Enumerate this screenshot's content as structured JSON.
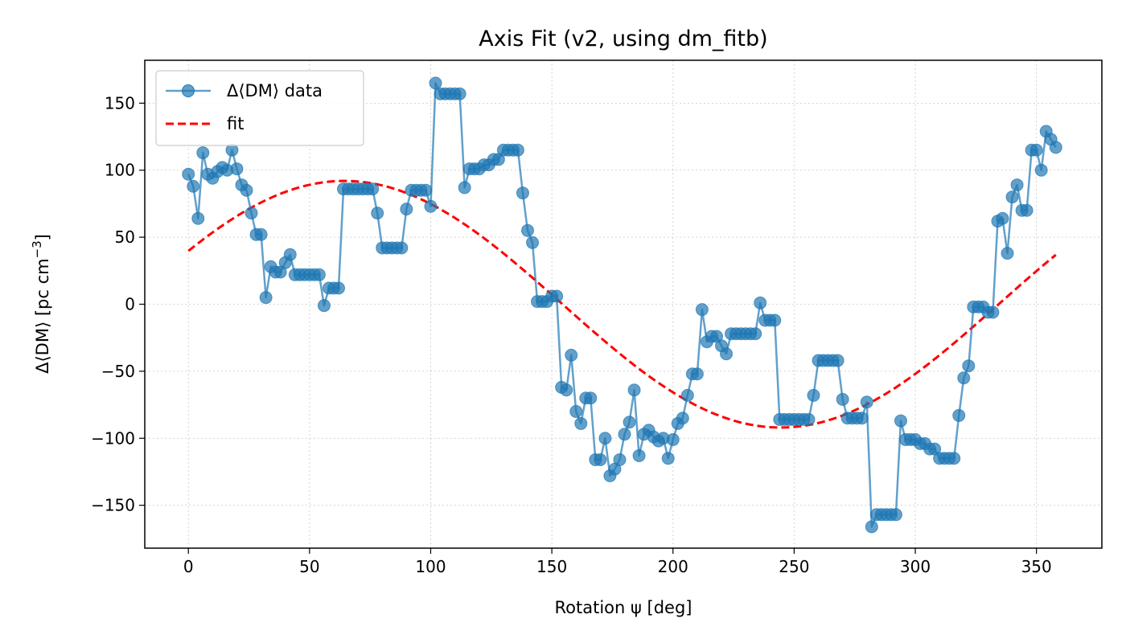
{
  "chart_data": {
    "type": "line",
    "title": "Axis Fit (v2, using dm_fitb)",
    "xlabel": "Rotation ψ [deg]",
    "ylabel": "Δ⟨DM⟩ [pc cm",
    "ylabel_sup": "−3",
    "ylabel_close": "]",
    "xlim": [
      -18,
      377
    ],
    "ylim": [
      -182,
      182
    ],
    "xticks": [
      0,
      50,
      100,
      150,
      200,
      250,
      300,
      350
    ],
    "yticks": [
      -150,
      -100,
      -50,
      0,
      50,
      100,
      150
    ],
    "ytick_labels": [
      "−150",
      "−100",
      "−50",
      "0",
      "50",
      "100",
      "150"
    ],
    "grid": true,
    "legend_position": "upper-left",
    "colors": {
      "data": "#1f77b4",
      "fit": "#ff0000"
    },
    "series": [
      {
        "name": "Δ⟨DM⟩ data",
        "style": "line-markers",
        "x": [
          0,
          2,
          4,
          6,
          8,
          10,
          12,
          14,
          16,
          18,
          20,
          22,
          24,
          26,
          28,
          30,
          32,
          34,
          36,
          38,
          40,
          42,
          44,
          46,
          48,
          50,
          52,
          54,
          56,
          58,
          60,
          62,
          64,
          66,
          68,
          70,
          72,
          74,
          76,
          78,
          80,
          82,
          84,
          86,
          88,
          90,
          92,
          94,
          96,
          98,
          100,
          102,
          104,
          106,
          108,
          110,
          112,
          114,
          116,
          118,
          120,
          122,
          124,
          126,
          128,
          130,
          132,
          134,
          136,
          138,
          140,
          142,
          144,
          146,
          148,
          150,
          152,
          154,
          156,
          158,
          160,
          162,
          164,
          166,
          168,
          170,
          172,
          174,
          176,
          178,
          180,
          182,
          184,
          186,
          188,
          190,
          192,
          194,
          196,
          198,
          200,
          202,
          204,
          206,
          208,
          210,
          212,
          214,
          216,
          218,
          220,
          222,
          224,
          226,
          228,
          230,
          232,
          234,
          236,
          238,
          240,
          242,
          244,
          246,
          248,
          250,
          252,
          254,
          256,
          258,
          260,
          262,
          264,
          266,
          268,
          270,
          272,
          274,
          276,
          278,
          280,
          282,
          284,
          286,
          288,
          290,
          292,
          294,
          296,
          298,
          300,
          302,
          304,
          306,
          308,
          310,
          312,
          314,
          316,
          318,
          320,
          322,
          324,
          326,
          328,
          330,
          332,
          334,
          336,
          338,
          340,
          342,
          344,
          346,
          348,
          350,
          352,
          354,
          356,
          358
        ],
        "y": [
          97,
          88,
          64,
          113,
          97,
          94,
          99,
          102,
          100,
          115,
          101,
          89,
          85,
          68,
          52,
          52,
          5,
          28,
          24,
          24,
          31,
          37,
          22,
          22,
          22,
          22,
          22,
          22,
          -1,
          12,
          12,
          12,
          86,
          86,
          86,
          86,
          86,
          86,
          86,
          68,
          42,
          42,
          42,
          42,
          42,
          71,
          85,
          85,
          85,
          85,
          73,
          165,
          157,
          157,
          157,
          157,
          157,
          87,
          101,
          101,
          101,
          104,
          104,
          108,
          108,
          115,
          115,
          115,
          115,
          83,
          55,
          46,
          2,
          2,
          2,
          6,
          6,
          -62,
          -64,
          -38,
          -80,
          -89,
          -70,
          -70,
          -116,
          -116,
          -100,
          -128,
          -123,
          -116,
          -97,
          -88,
          -64,
          -113,
          -97,
          -94,
          -99,
          -102,
          -100,
          -115,
          -101,
          -89,
          -85,
          -68,
          -52,
          -52,
          -4,
          -28,
          -24,
          -24,
          -31,
          -37,
          -22,
          -22,
          -22,
          -22,
          -22,
          -22,
          1,
          -12,
          -12,
          -12,
          -86,
          -86,
          -86,
          -86,
          -86,
          -86,
          -86,
          -68,
          -42,
          -42,
          -42,
          -42,
          -42,
          -71,
          -85,
          -85,
          -85,
          -85,
          -73,
          -166,
          -157,
          -157,
          -157,
          -157,
          -157,
          -87,
          -101,
          -101,
          -101,
          -104,
          -104,
          -108,
          -108,
          -115,
          -115,
          -115,
          -115,
          -83,
          -55,
          -46,
          -2,
          -2,
          -2,
          -6,
          -6,
          62,
          64,
          38,
          80,
          89,
          70,
          70,
          115,
          115,
          100,
          129,
          123,
          117
        ]
      },
      {
        "name": "fit",
        "style": "dashed",
        "model": "A*sin(x + phi)",
        "amplitude": 92,
        "phase_deg": 25.6,
        "x_range": [
          0,
          358
        ]
      }
    ]
  }
}
